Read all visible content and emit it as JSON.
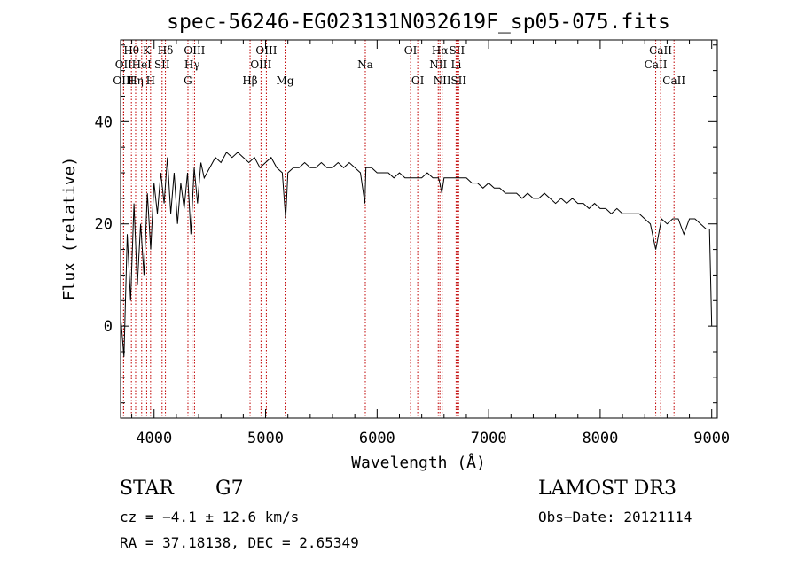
{
  "chart_data": {
    "type": "line",
    "title": "spec-56246-EG023131N032619F_sp05-075.fits",
    "xlabel": "Wavelength (Å)",
    "ylabel": "Flux (relative)",
    "xlim": [
      3700,
      9050
    ],
    "ylim": [
      -18,
      56
    ],
    "xticks": [
      4000,
      5000,
      6000,
      7000,
      8000,
      9000
    ],
    "yticks": [
      0,
      20,
      40
    ],
    "x": [
      3700,
      3730,
      3760,
      3790,
      3820,
      3850,
      3880,
      3910,
      3940,
      3970,
      4000,
      4030,
      4060,
      4090,
      4120,
      4150,
      4180,
      4210,
      4240,
      4270,
      4300,
      4330,
      4360,
      4390,
      4420,
      4450,
      4500,
      4550,
      4600,
      4650,
      4700,
      4750,
      4800,
      4850,
      4900,
      4950,
      5000,
      5050,
      5100,
      5150,
      5180,
      5200,
      5250,
      5300,
      5350,
      5400,
      5450,
      5500,
      5550,
      5600,
      5650,
      5700,
      5750,
      5800,
      5850,
      5890,
      5900,
      5950,
      6000,
      6050,
      6100,
      6150,
      6200,
      6250,
      6300,
      6350,
      6400,
      6450,
      6500,
      6550,
      6563,
      6580,
      6600,
      6650,
      6700,
      6750,
      6800,
      6850,
      6900,
      6950,
      7000,
      7050,
      7100,
      7150,
      7200,
      7250,
      7300,
      7350,
      7400,
      7450,
      7500,
      7550,
      7600,
      7650,
      7700,
      7750,
      7800,
      7850,
      7900,
      7950,
      8000,
      8050,
      8100,
      8150,
      8200,
      8250,
      8300,
      8350,
      8400,
      8450,
      8498,
      8550,
      8600,
      8650,
      8700,
      8750,
      8800,
      8850,
      8900,
      8950,
      8980,
      9000
    ],
    "y": [
      2,
      -6,
      18,
      5,
      24,
      8,
      20,
      10,
      26,
      15,
      28,
      22,
      30,
      24,
      33,
      22,
      30,
      20,
      28,
      23,
      30,
      18,
      31,
      24,
      32,
      29,
      31,
      33,
      32,
      34,
      33,
      34,
      33,
      32,
      33,
      31,
      32,
      33,
      31,
      30,
      21,
      30,
      31,
      31,
      32,
      31,
      31,
      32,
      31,
      31,
      32,
      31,
      32,
      31,
      30,
      24,
      31,
      31,
      30,
      30,
      30,
      29,
      30,
      29,
      29,
      29,
      29,
      30,
      29,
      29,
      28,
      26,
      29,
      29,
      29,
      29,
      29,
      28,
      28,
      27,
      28,
      27,
      27,
      26,
      26,
      26,
      25,
      26,
      25,
      25,
      26,
      25,
      24,
      25,
      24,
      25,
      24,
      24,
      23,
      24,
      23,
      23,
      22,
      23,
      22,
      22,
      22,
      22,
      21,
      20,
      15,
      21,
      20,
      21,
      21,
      18,
      21,
      21,
      20,
      19,
      19,
      0
    ],
    "lines": [
      {
        "label": "OII",
        "wave": 3727,
        "row": 2
      },
      {
        "label": "OIII",
        "wave": 3727,
        "row": 3
      },
      {
        "label": "Hθ",
        "wave": 3797,
        "row": 1
      },
      {
        "label": "Hη",
        "wave": 3835,
        "row": 3
      },
      {
        "label": "HeI",
        "wave": 3889,
        "row": 2
      },
      {
        "label": "K",
        "wave": 3934,
        "row": 1
      },
      {
        "label": "H",
        "wave": 3969,
        "row": 3
      },
      {
        "label": "SII",
        "wave": 4072,
        "row": 2
      },
      {
        "label": "Hδ",
        "wave": 4102,
        "row": 1
      },
      {
        "label": "G",
        "wave": 4304,
        "row": 3
      },
      {
        "label": "Hγ",
        "wave": 4341,
        "row": 2
      },
      {
        "label": "OIII",
        "wave": 4363,
        "row": 1
      },
      {
        "label": "Hβ",
        "wave": 4861,
        "row": 3
      },
      {
        "label": "OIII",
        "wave": 4959,
        "row": 2
      },
      {
        "label": "OIII",
        "wave": 5007,
        "row": 1
      },
      {
        "label": "Mg",
        "wave": 5175,
        "row": 3
      },
      {
        "label": "Na",
        "wave": 5894,
        "row": 2
      },
      {
        "label": "OI",
        "wave": 6300,
        "row": 1
      },
      {
        "label": "OI",
        "wave": 6364,
        "row": 3
      },
      {
        "label": "NII",
        "wave": 6548,
        "row": 2
      },
      {
        "label": "Hα",
        "wave": 6563,
        "row": 1
      },
      {
        "label": "NII",
        "wave": 6583,
        "row": 3
      },
      {
        "label": "Li",
        "wave": 6708,
        "row": 2
      },
      {
        "label": "SII",
        "wave": 6716,
        "row": 1
      },
      {
        "label": "SII",
        "wave": 6731,
        "row": 3
      },
      {
        "label": "CaII",
        "wave": 8498,
        "row": 2
      },
      {
        "label": "CaII",
        "wave": 8542,
        "row": 1
      },
      {
        "label": "CaII",
        "wave": 8662,
        "row": 3
      }
    ]
  },
  "info": {
    "class": "STAR",
    "subclass": "G7",
    "survey": "LAMOST DR3",
    "cz": "cz = −4.1 ± 12.6 km/s",
    "obs_date": "Obs−Date: 20121114",
    "coords": "RA =  37.18138, DEC =   2.65349"
  }
}
